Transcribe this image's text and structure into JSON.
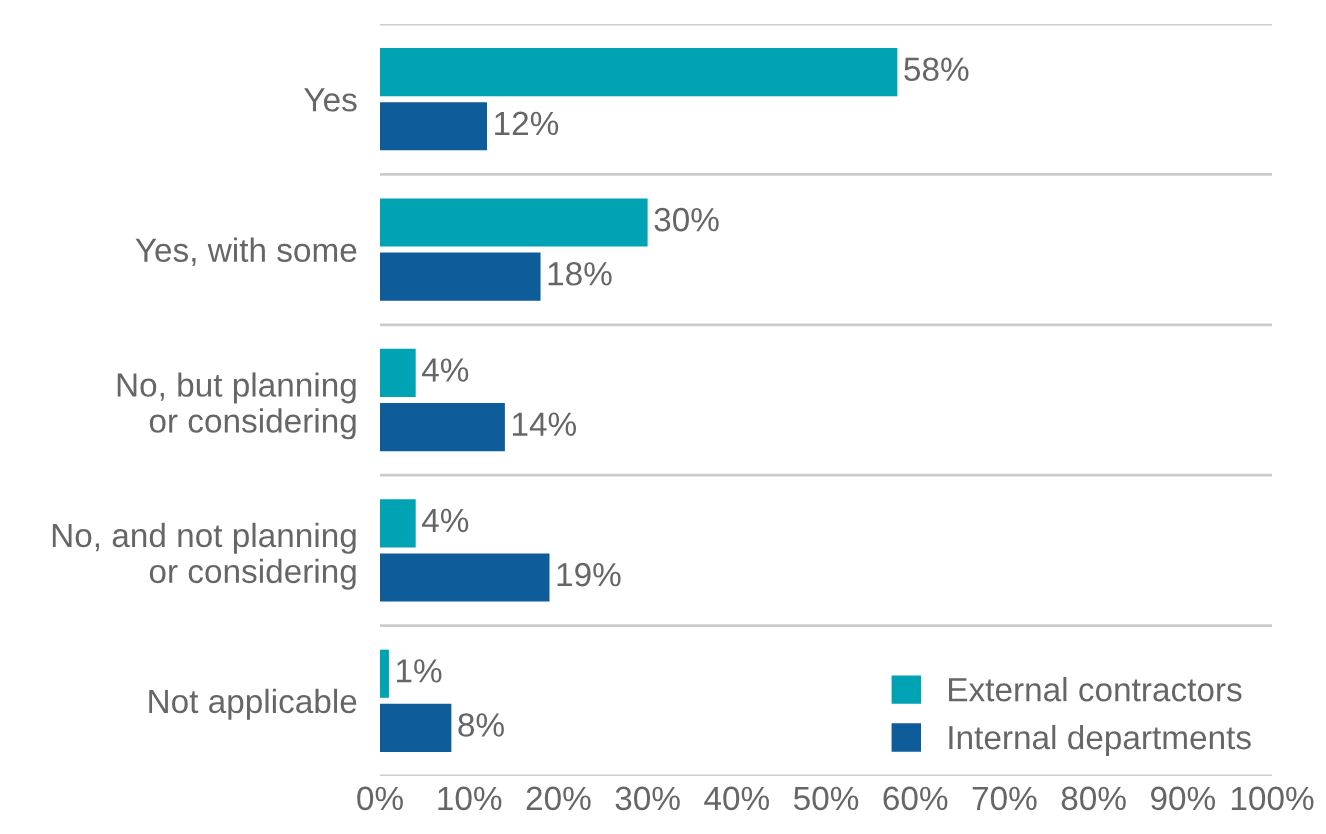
{
  "chart_data": {
    "type": "bar",
    "orientation": "horizontal",
    "categories": [
      "Yes",
      "Yes, with some",
      "No, but planning\nor considering",
      "No, and not planning\nor considering",
      "Not applicable"
    ],
    "series": [
      {
        "name": "External contractors",
        "color": "#00a3b4",
        "values": [
          58,
          30,
          4,
          4,
          1
        ],
        "value_labels": [
          "58%",
          "30%",
          "4%",
          "4%",
          "1%"
        ]
      },
      {
        "name": "Internal departments",
        "color": "#0e5c99",
        "values": [
          12,
          18,
          14,
          19,
          8
        ],
        "value_labels": [
          "12%",
          "18%",
          "14%",
          "19%",
          "8%"
        ]
      }
    ],
    "xlim": [
      0,
      100
    ],
    "xticks": [
      {
        "value": 0,
        "label": "0%"
      },
      {
        "value": 10,
        "label": "10%"
      },
      {
        "value": 20,
        "label": "20%"
      },
      {
        "value": 30,
        "label": "30%"
      },
      {
        "value": 40,
        "label": "40%"
      },
      {
        "value": 50,
        "label": "50%"
      },
      {
        "value": 60,
        "label": "60%"
      },
      {
        "value": 70,
        "label": "70%"
      },
      {
        "value": 80,
        "label": "80%"
      },
      {
        "value": 90,
        "label": "90%"
      },
      {
        "value": 100,
        "label": "100%"
      }
    ],
    "grid": "y",
    "legend": "bottom right"
  }
}
